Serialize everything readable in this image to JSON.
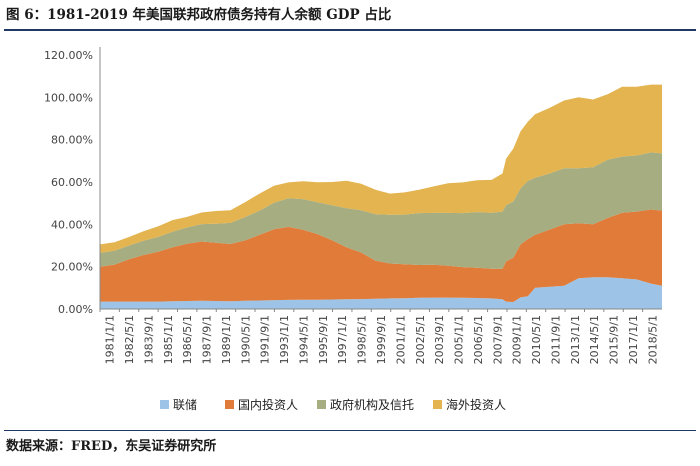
{
  "title": "图 6：1981-2019 年美国联邦政府债务持有人余额 GDP 占比",
  "source": "数据来源：FRED，东吴证券研究所",
  "chart_data": {
    "type": "area",
    "title": "图 6：1981-2019 年美国联邦政府债务持有人余额 GDP 占比",
    "xlabel": "",
    "ylabel": "",
    "ylim": [
      0,
      120
    ],
    "y_ticks": [
      "0.00%",
      "20.00%",
      "40.00%",
      "60.00%",
      "80.00%",
      "100.00%",
      "120.00%"
    ],
    "grid": false,
    "legend_position": "bottom",
    "x_tick_labels": [
      "1981/1/1",
      "1982/5/1",
      "1983/9/1",
      "1985/1/1",
      "1986/5/1",
      "1987/9/1",
      "1989/1/1",
      "1990/5/1",
      "1991/9/1",
      "1993/1/1",
      "1994/5/1",
      "1995/9/1",
      "1997/1/1",
      "1998/5/1",
      "1999/9/1",
      "2001/1/1",
      "2002/5/1",
      "2003/9/1",
      "2005/1/1",
      "2006/5/1",
      "2007/9/1",
      "2009/1/1",
      "2010/5/1",
      "2011/9/1",
      "2013/1/1",
      "2014/5/1",
      "2015/9/1",
      "2017/1/1",
      "2018/5/1"
    ],
    "x": [
      1981.0,
      1982.0,
      1983.0,
      1984.0,
      1985.0,
      1986.0,
      1987.0,
      1988.0,
      1989.0,
      1990.0,
      1991.0,
      1992.0,
      1993.0,
      1994.0,
      1995.0,
      1996.0,
      1997.0,
      1998.0,
      1999.0,
      2000.0,
      2001.0,
      2002.0,
      2003.0,
      2004.0,
      2005.0,
      2006.0,
      2007.0,
      2008.0,
      2008.75,
      2009.0,
      2009.5,
      2010.0,
      2010.5,
      2011.0,
      2012.0,
      2013.0,
      2014.0,
      2015.0,
      2016.0,
      2017.0,
      2018.0,
      2019.0,
      2019.75
    ],
    "series": [
      {
        "name": "联储",
        "color": "#9dc3e6",
        "values": [
          3.5,
          3.5,
          3.5,
          3.5,
          3.5,
          3.7,
          3.8,
          3.9,
          3.8,
          3.7,
          3.9,
          4.0,
          4.2,
          4.3,
          4.4,
          4.4,
          4.5,
          4.6,
          4.7,
          4.8,
          5.0,
          5.1,
          5.3,
          5.4,
          5.4,
          5.3,
          5.2,
          5.0,
          4.6,
          3.5,
          3.3,
          5.5,
          6.0,
          10.0,
          10.5,
          11.0,
          14.5,
          15.0,
          15.0,
          14.5,
          14.0,
          12.0,
          11.0
        ]
      },
      {
        "name": "国内投资人",
        "color": "#e07b39",
        "values": [
          16.5,
          17.5,
          20.0,
          22.0,
          23.5,
          25.5,
          27.0,
          28.0,
          27.5,
          27.0,
          28.5,
          31.0,
          33.5,
          34.5,
          33.0,
          31.0,
          28.0,
          24.5,
          22.0,
          18.0,
          16.5,
          16.0,
          15.5,
          15.5,
          15.0,
          14.5,
          14.3,
          14.0,
          14.4,
          19.0,
          21.0,
          25.0,
          27.0,
          25.0,
          27.0,
          29.0,
          26.0,
          25.0,
          28.0,
          31.0,
          32.0,
          35.0,
          35.5
        ]
      },
      {
        "name": "政府机构及信托",
        "color": "#a5ad81",
        "values": [
          6.5,
          6.5,
          6.5,
          6.7,
          7.0,
          7.3,
          7.7,
          8.2,
          9.0,
          10.0,
          11.0,
          11.5,
          12.5,
          13.5,
          14.5,
          15.0,
          16.5,
          18.5,
          20.0,
          22.0,
          23.0,
          23.5,
          24.5,
          24.5,
          25.0,
          25.5,
          26.3,
          26.5,
          27.0,
          26.5,
          26.5,
          26.5,
          27.5,
          27.0,
          26.5,
          26.5,
          26.0,
          27.0,
          27.5,
          26.5,
          26.5,
          27.0,
          27.0
        ]
      },
      {
        "name": "海外投资人",
        "color": "#e3b44f",
        "values": [
          4.0,
          4.0,
          4.0,
          4.5,
          5.0,
          5.5,
          5.0,
          5.5,
          6.0,
          6.0,
          7.0,
          8.0,
          8.0,
          7.5,
          8.5,
          9.5,
          11.0,
          13.0,
          12.5,
          11.5,
          10.0,
          10.5,
          11.0,
          12.5,
          14.0,
          14.5,
          15.0,
          15.5,
          18.0,
          22.0,
          25.0,
          27.0,
          28.0,
          30.0,
          31.0,
          32.0,
          33.5,
          32.0,
          31.0,
          33.0,
          32.5,
          32.0,
          32.5
        ]
      }
    ]
  }
}
